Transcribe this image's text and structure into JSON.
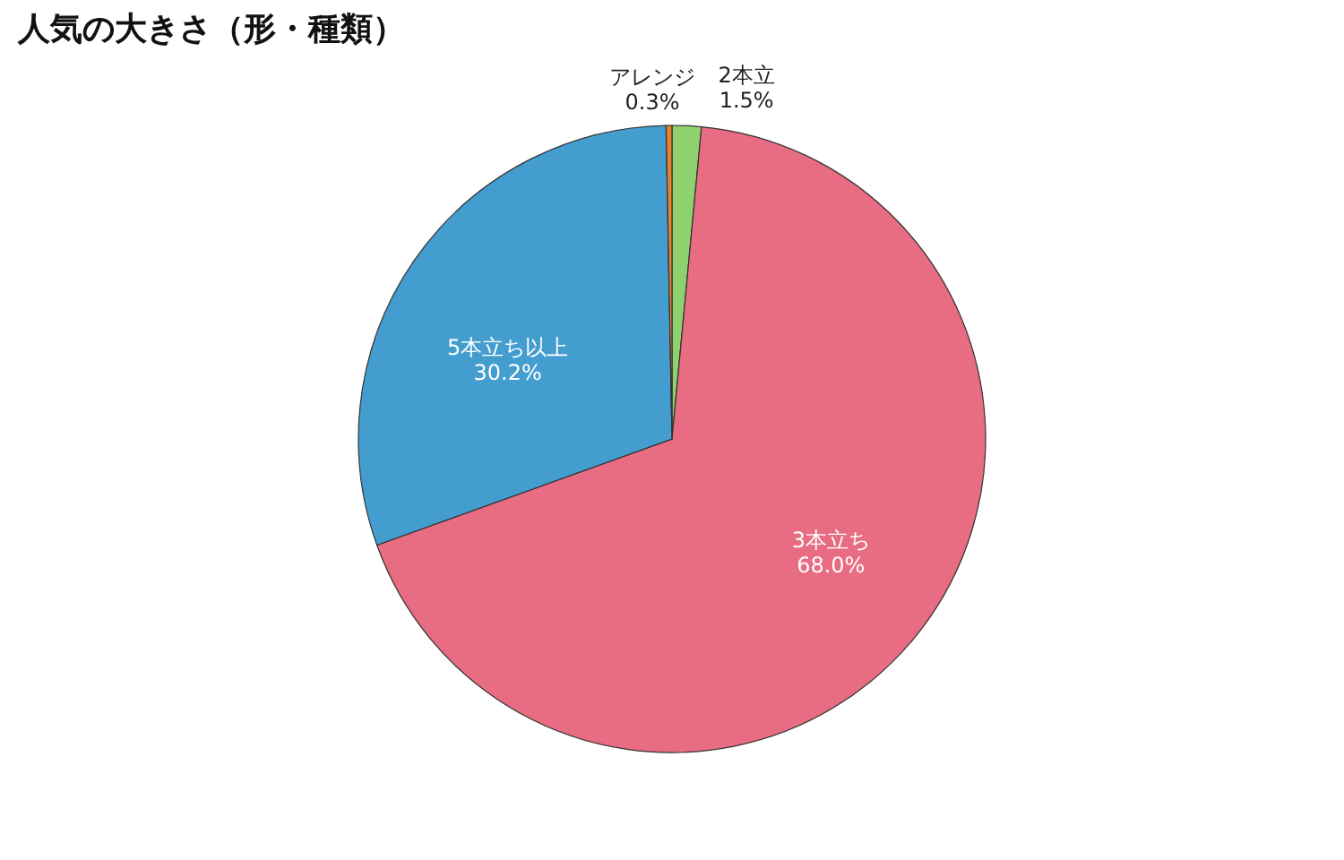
{
  "chart_data": {
    "type": "pie",
    "title": "人気の大きさ（形・種類）",
    "categories": [
      "2本立",
      "3本立ち",
      "5本立ち以上",
      "アレンジ"
    ],
    "values": [
      1.5,
      68.0,
      30.2,
      0.3
    ],
    "value_labels": [
      "1.5%",
      "68.0%",
      "30.2%",
      "0.3%"
    ],
    "colors": [
      "#8fd16f",
      "#e86c82",
      "#449dcf",
      "#e8822e"
    ],
    "legend": false
  }
}
